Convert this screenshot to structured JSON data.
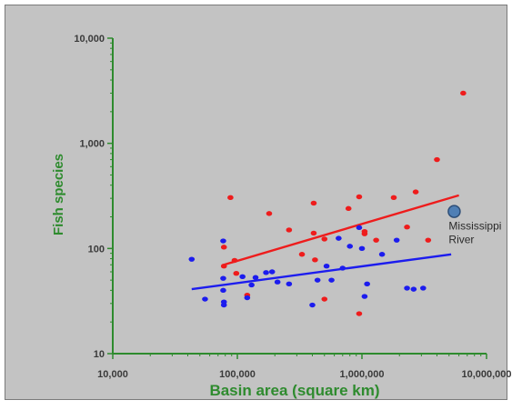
{
  "chart_data": {
    "type": "scatter",
    "title": "",
    "xlabel": "Basin area (square km)",
    "ylabel": "Fish species",
    "xscale": "log",
    "yscale": "log",
    "xlim": [
      10000,
      10000000
    ],
    "ylim": [
      10,
      10000
    ],
    "x_ticks": [
      {
        "value": 10000,
        "label": "10,000"
      },
      {
        "value": 100000,
        "label": "100,000"
      },
      {
        "value": 1000000,
        "label": "1,000,000"
      },
      {
        "value": 10000000,
        "label": "10,000,000"
      }
    ],
    "y_ticks": [
      {
        "value": 10,
        "label": "10"
      },
      {
        "value": 100,
        "label": "100"
      },
      {
        "value": 1000,
        "label": "1,000"
      },
      {
        "value": 10000,
        "label": "10,000"
      }
    ],
    "grid": false,
    "legend": "none",
    "series": [
      {
        "color": "#ee1c1c",
        "points": [
          [
            78000,
            68
          ],
          [
            78000,
            103
          ],
          [
            88000,
            305
          ],
          [
            95000,
            77
          ],
          [
            98000,
            58
          ],
          [
            120000,
            36
          ],
          [
            180000,
            215
          ],
          [
            260000,
            150
          ],
          [
            330000,
            88
          ],
          [
            410000,
            140
          ],
          [
            410000,
            270
          ],
          [
            420000,
            78
          ],
          [
            500000,
            33
          ],
          [
            500000,
            123
          ],
          [
            780000,
            240
          ],
          [
            950000,
            310
          ],
          [
            950000,
            24
          ],
          [
            1050000,
            145
          ],
          [
            1050000,
            138
          ],
          [
            1300000,
            120
          ],
          [
            1800000,
            305
          ],
          [
            2300000,
            160
          ],
          [
            2700000,
            345
          ],
          [
            3400000,
            120
          ],
          [
            4000000,
            700
          ],
          [
            6500000,
            3000
          ]
        ],
        "trend": [
          [
            78000,
            70
          ],
          [
            6000000,
            320
          ]
        ]
      },
      {
        "color": "#1c1cee",
        "points": [
          [
            43000,
            79
          ],
          [
            55000,
            33
          ],
          [
            77000,
            118
          ],
          [
            77000,
            52
          ],
          [
            77000,
            40
          ],
          [
            78000,
            31
          ],
          [
            78000,
            29
          ],
          [
            110000,
            54
          ],
          [
            120000,
            34
          ],
          [
            130000,
            45
          ],
          [
            140000,
            53
          ],
          [
            170000,
            59
          ],
          [
            190000,
            60
          ],
          [
            210000,
            48
          ],
          [
            260000,
            46
          ],
          [
            400000,
            29
          ],
          [
            440000,
            50
          ],
          [
            520000,
            68
          ],
          [
            570000,
            50
          ],
          [
            650000,
            125
          ],
          [
            700000,
            65
          ],
          [
            800000,
            105
          ],
          [
            950000,
            158
          ],
          [
            1000000,
            100
          ],
          [
            1050000,
            35
          ],
          [
            1100000,
            46
          ],
          [
            1450000,
            88
          ],
          [
            1900000,
            120
          ],
          [
            2300000,
            42
          ],
          [
            2600000,
            41
          ],
          [
            3100000,
            42
          ]
        ],
        "trend": [
          [
            43000,
            41
          ],
          [
            5200000,
            88
          ]
        ]
      }
    ],
    "highlight": {
      "x": 5500000,
      "y": 225,
      "label_lines": [
        "Mississippi",
        "River"
      ],
      "color": "#4f7fb5"
    }
  }
}
